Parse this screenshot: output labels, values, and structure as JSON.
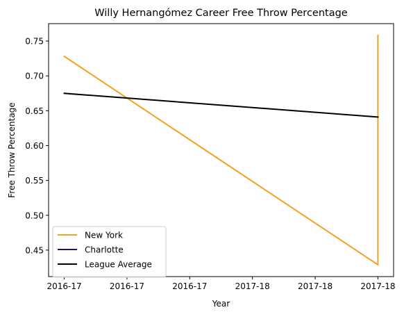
{
  "chart_data": {
    "type": "line",
    "title": "Willy Hernangómez Career Free Throw Percentage",
    "xlabel": "Year",
    "ylabel": "Free Throw Percentage",
    "x_tick_labels": [
      "2016-17",
      "2016-17",
      "2016-17",
      "2017-18",
      "2017-18",
      "2017-18"
    ],
    "x_range": [
      -0.05,
      1.05
    ],
    "ylim": [
      0.412,
      0.775
    ],
    "y_ticks": [
      0.45,
      0.5,
      0.55,
      0.6,
      0.65,
      0.7,
      0.75
    ],
    "y_tick_labels": [
      "0.45",
      "0.50",
      "0.55",
      "0.60",
      "0.65",
      "0.70",
      "0.75"
    ],
    "grid": false,
    "legend_position": "lower-left",
    "series": [
      {
        "name": "New York",
        "color": "#f4a11f",
        "points": [
          {
            "x": 0,
            "y": 0.728
          },
          {
            "x": 1,
            "y": 0.429
          },
          {
            "x": 1,
            "y": 0.758
          }
        ]
      },
      {
        "name": "Charlotte",
        "color": "#1d1160",
        "points": []
      },
      {
        "name": "League Average",
        "color": "#000000",
        "points": [
          {
            "x": 0,
            "y": 0.675
          },
          {
            "x": 1,
            "y": 0.641
          }
        ]
      }
    ]
  }
}
